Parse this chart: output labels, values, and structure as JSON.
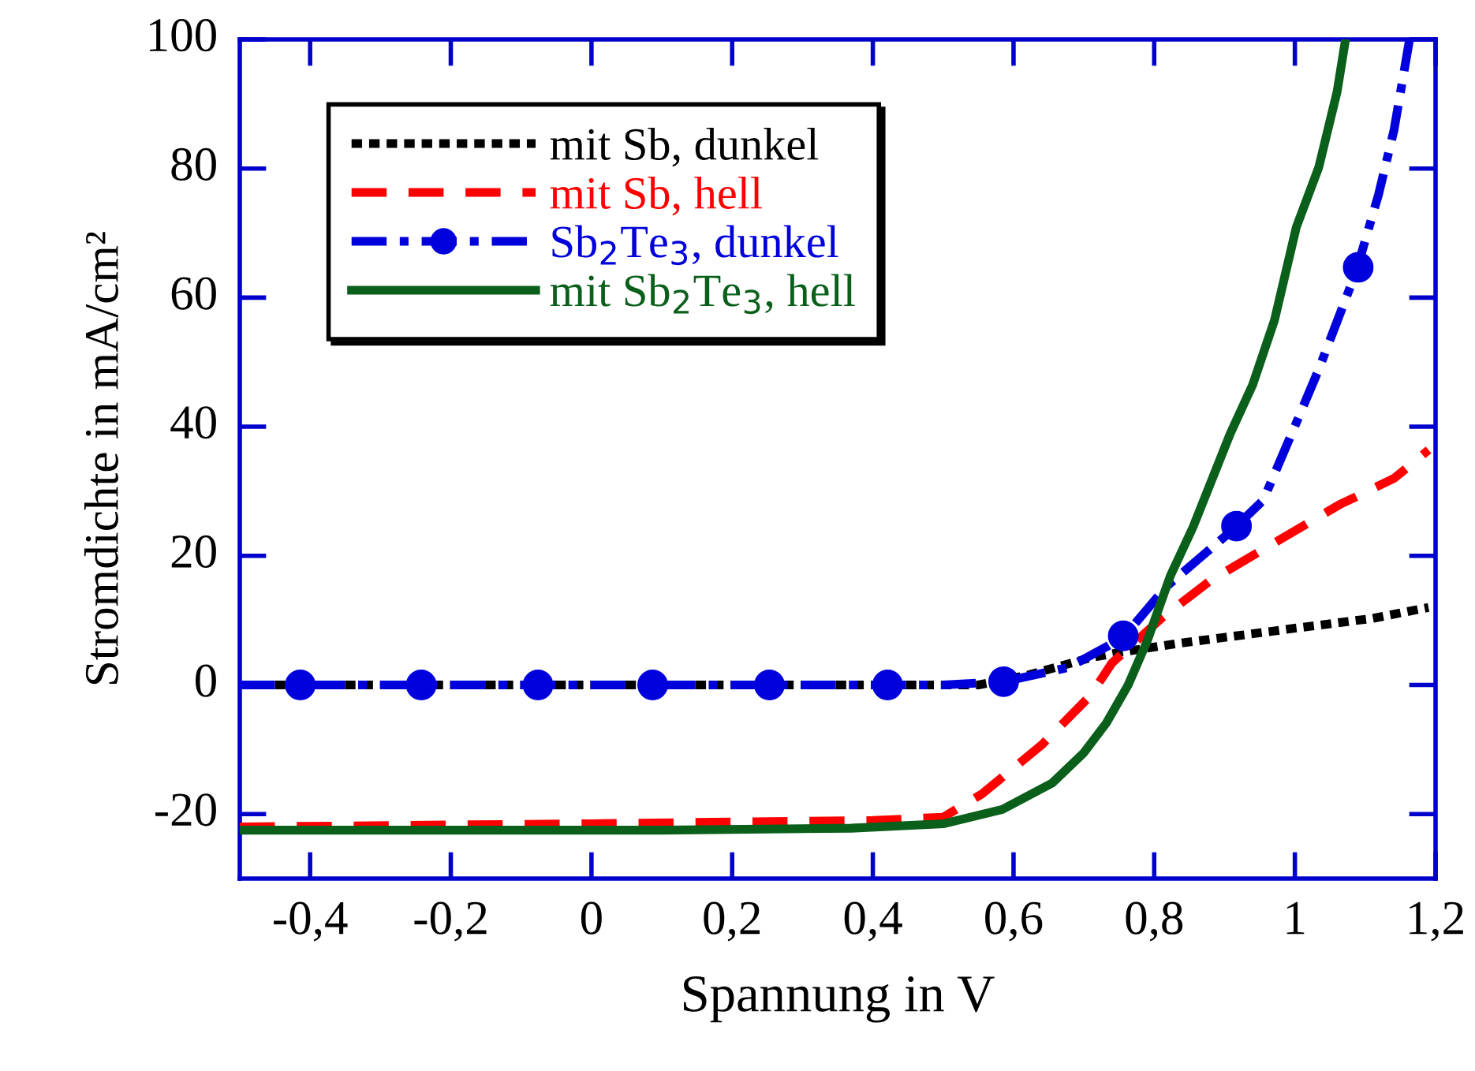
{
  "chart_data": {
    "type": "line",
    "xlabel": "Spannung in V",
    "ylabel": "Stromdichte in mA/cm²",
    "xlim": [
      -0.5,
      1.2
    ],
    "ylim": [
      -30,
      100
    ],
    "xticks": [
      {
        "value": -0.4,
        "label": "-0,4"
      },
      {
        "value": -0.2,
        "label": "-0,2"
      },
      0,
      {
        "value": 0.2,
        "label": "0,2"
      },
      {
        "value": 0.4,
        "label": "0,4"
      },
      {
        "value": 0.6,
        "label": "0,6"
      },
      {
        "value": 0.8,
        "label": "0,8"
      },
      1,
      {
        "value": 1.2,
        "label": "1,2"
      }
    ],
    "yticks": [
      -20,
      0,
      20,
      40,
      60,
      80,
      100
    ],
    "grid": false,
    "legend": "top left",
    "series": [
      {
        "name": "mit Sb, dunkel",
        "color": "#000000",
        "line_style": "dotted",
        "marker": "none",
        "x": [
          -0.5,
          0.0,
          0.55,
          0.62,
          0.709,
          0.754,
          0.832,
          0.987,
          1.11,
          1.19
        ],
        "values": [
          0,
          0,
          0,
          1.5,
          4.2,
          5.1,
          6.4,
          8.6,
          10.3,
          12
        ]
      },
      {
        "name": "mit Sb, hell",
        "color": "#ff0000",
        "line_style": "dashed",
        "marker": "none",
        "x": [
          -0.5,
          0.0,
          0.4,
          0.5,
          0.555,
          0.64,
          0.709,
          0.74,
          0.81,
          0.879,
          0.955,
          1.063,
          1.141,
          1.19
        ],
        "values": [
          -22,
          -21.5,
          -21,
          -20.5,
          -16.9,
          -9.3,
          -1.7,
          3.4,
          10.3,
          16.1,
          21,
          27.9,
          32,
          36.4
        ]
      },
      {
        "type": "scatter",
        "color": "#0000dd",
        "x": [
          -0.414,
          -0.242,
          -0.076,
          0.087,
          0.253,
          0.421,
          0.586,
          0.756,
          0.917,
          1.09
        ],
        "values": [
          0,
          0,
          0,
          0,
          0,
          0,
          0.5,
          7.6,
          24.6,
          64.7
        ]
      },
      {
        "name": "Sb$_{2}$Te$_{3}$, dunkel",
        "color": "#0000dd",
        "line_style": "dashdot",
        "marker": "none",
        "x": [
          -0.5,
          0.0,
          0.5,
          0.586,
          0.678,
          0.732,
          0.758,
          0.817,
          0.908,
          0.955,
          1.002,
          1.034,
          1.087,
          1.119,
          1.141,
          1.163
        ],
        "values": [
          0,
          0,
          0,
          0.5,
          2.7,
          5.9,
          7.6,
          15.2,
          23.7,
          28.6,
          40.6,
          48.9,
          64,
          76,
          86,
          100
        ]
      },
      {
        "name": "mit Sb$_{2}$Te$_{3}$, hell",
        "color": "#0a5f1a",
        "line_style": "solid",
        "marker": "none",
        "x": [
          -0.5,
          0.1,
          0.369,
          0.501,
          0.584,
          0.655,
          0.7,
          0.732,
          0.763,
          0.79,
          0.823,
          0.855,
          0.908,
          0.94,
          0.971,
          1.002,
          1.034,
          1.06,
          1.072
        ],
        "values": [
          -22.5,
          -22.5,
          -22.2,
          -21.5,
          -19.3,
          -15.2,
          -10.5,
          -5.9,
          0,
          6.8,
          16.9,
          24.4,
          38.9,
          46.5,
          56.5,
          70.9,
          80.2,
          91.9,
          100
        ]
      }
    ]
  }
}
